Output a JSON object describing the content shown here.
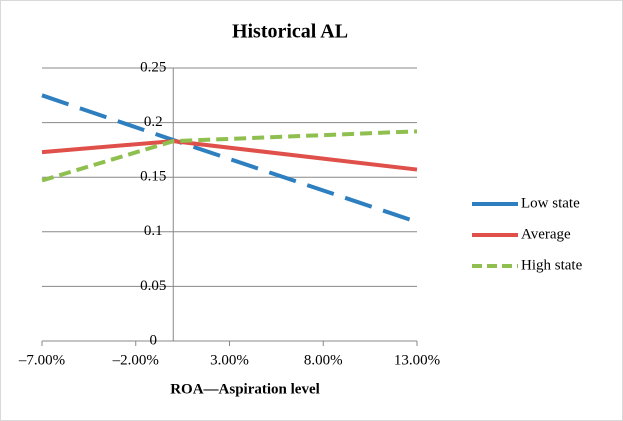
{
  "chart_data": {
    "type": "line",
    "title": "Historical  AL",
    "x_label": "ROA—Aspiration level",
    "x": [
      -7,
      0,
      13
    ],
    "series": [
      {
        "name": "Low state",
        "color": "#2e7fc0",
        "dash": "28 12",
        "values": [
          0.225,
          0.184,
          0.109
        ]
      },
      {
        "name": "Average",
        "color": "#e0504a",
        "dash": "none",
        "values": [
          0.173,
          0.183,
          0.157
        ]
      },
      {
        "name": "High state",
        "color": "#8fbf4f",
        "dash": "12 6",
        "values": [
          0.147,
          0.183,
          0.192
        ]
      }
    ],
    "xlim": [
      -7,
      13
    ],
    "xticks": [
      {
        "value": -7,
        "label": "–7.00%"
      },
      {
        "value": -2,
        "label": "–2.00%"
      },
      {
        "value": 3,
        "label": "3.00%"
      },
      {
        "value": 8,
        "label": "8.00%"
      },
      {
        "value": 13,
        "label": "13.00%"
      }
    ],
    "ylim": [
      0,
      0.25
    ],
    "yticks": [
      0,
      0.05,
      0.1,
      0.15,
      0.2,
      0.25
    ],
    "grid": true,
    "legend": "right"
  }
}
